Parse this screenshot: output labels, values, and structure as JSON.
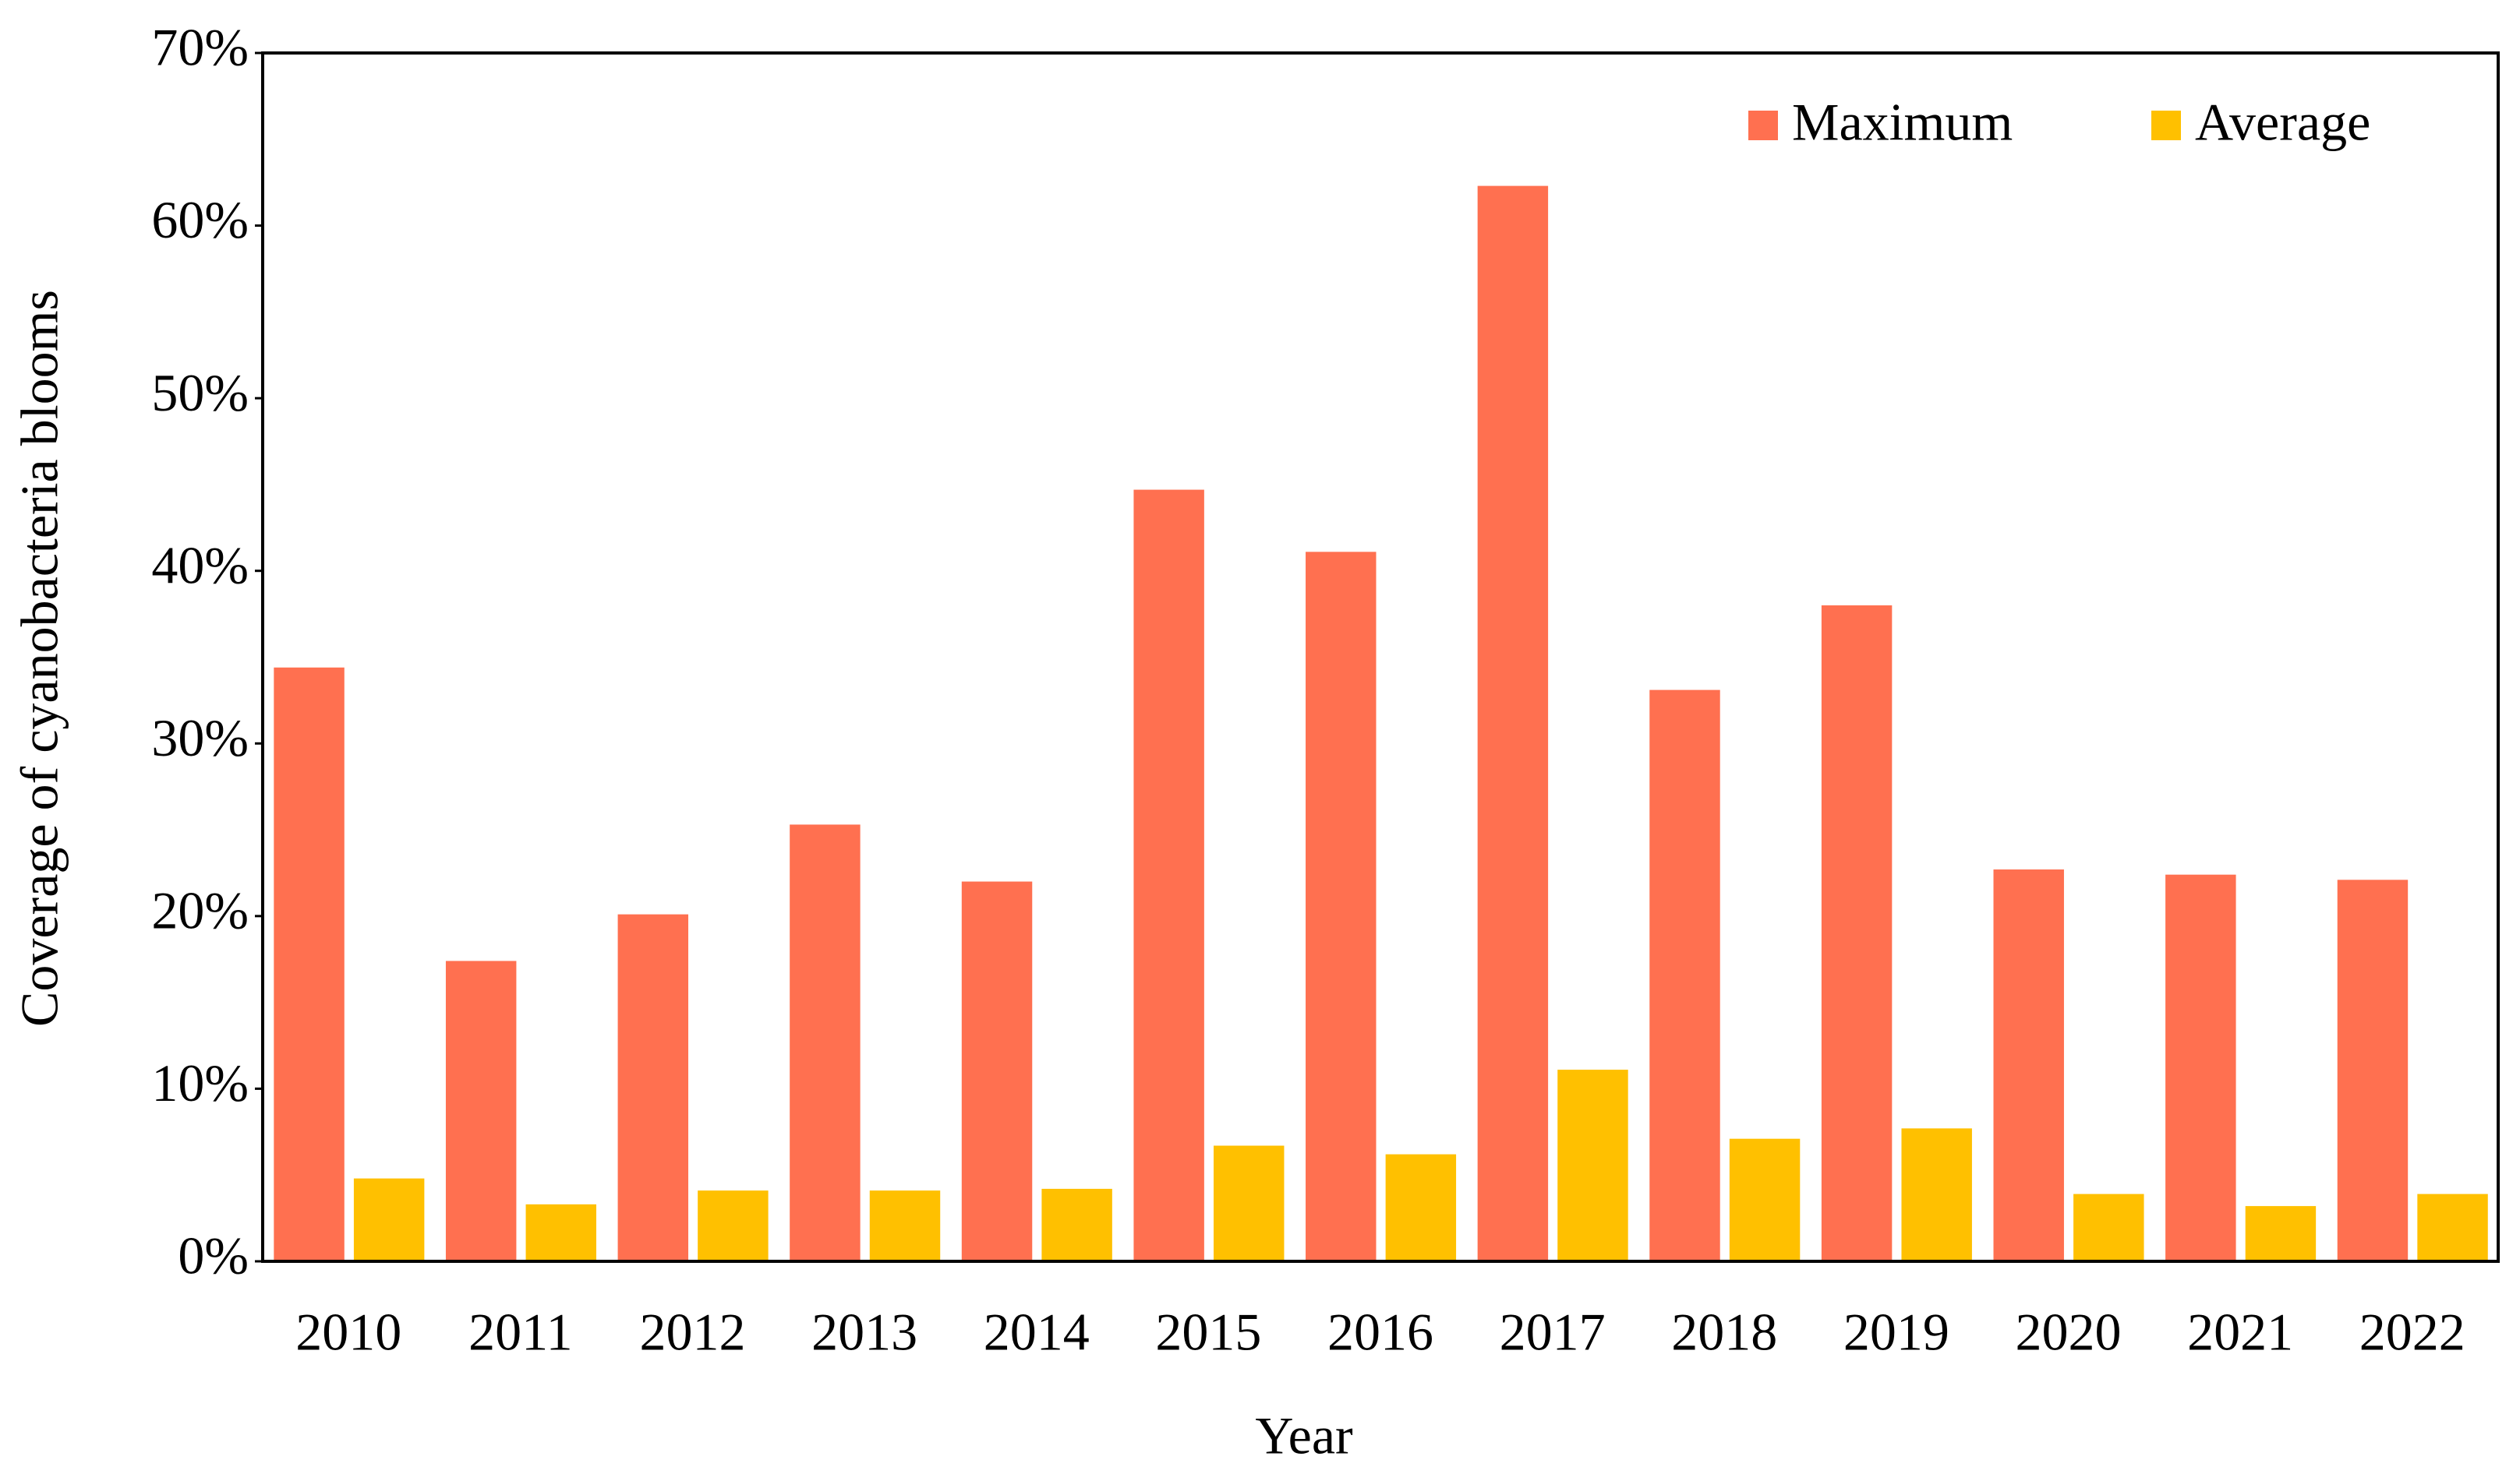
{
  "chart_data": {
    "type": "bar",
    "x_label": "Year",
    "y_label": "Coverage of cyanobacteria blooms",
    "categories": [
      "2010",
      "2011",
      "2012",
      "2013",
      "2014",
      "2015",
      "2016",
      "2017",
      "2018",
      "2019",
      "2020",
      "2021",
      "2022"
    ],
    "series": [
      {
        "name": "Maximum",
        "color": "#ff7050",
        "values": [
          34.4,
          17.4,
          20.1,
          25.3,
          22.0,
          44.7,
          41.1,
          62.3,
          33.1,
          38.0,
          22.7,
          22.4,
          22.1
        ]
      },
      {
        "name": "Average",
        "color": "#ffc000",
        "values": [
          4.8,
          3.3,
          4.1,
          4.1,
          4.2,
          6.7,
          6.2,
          11.1,
          7.1,
          7.7,
          3.9,
          3.2,
          3.9
        ]
      }
    ],
    "ylim": [
      0,
      70
    ],
    "yticks": [
      {
        "value": 0,
        "label": "0%"
      },
      {
        "value": 10,
        "label": "10%"
      },
      {
        "value": 20,
        "label": "20%"
      },
      {
        "value": 30,
        "label": "30%"
      },
      {
        "value": 40,
        "label": "40%"
      },
      {
        "value": 50,
        "label": "50%"
      },
      {
        "value": 60,
        "label": "60%"
      },
      {
        "value": 70,
        "label": "70%"
      }
    ],
    "grid": false,
    "legend": "top-right"
  }
}
